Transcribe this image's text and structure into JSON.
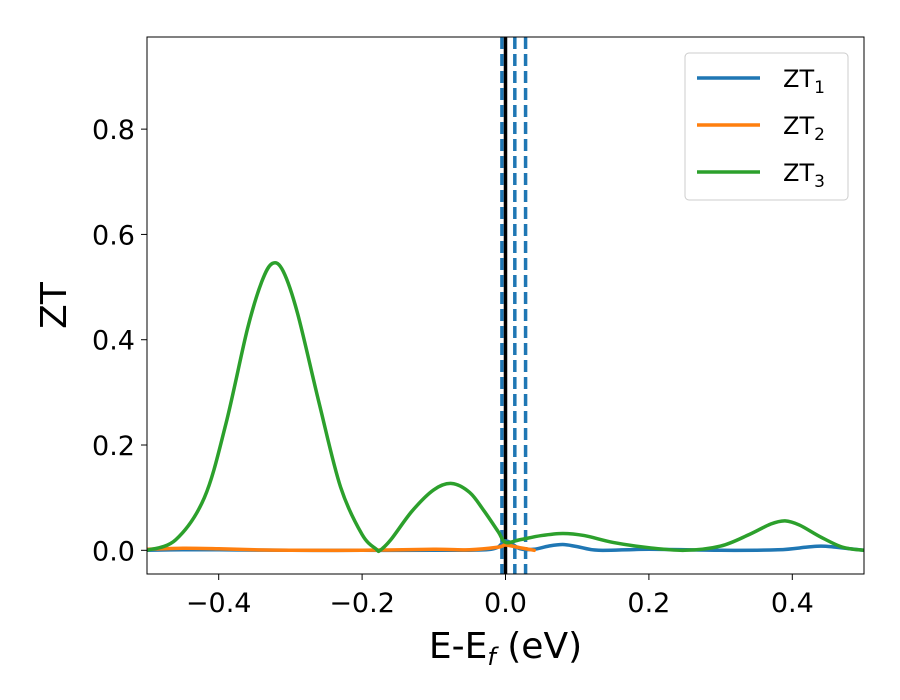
{
  "chart_data": {
    "type": "line",
    "xlabel": "E-E",
    "xlabel_sub": "f",
    "xlabel_unit": " (eV)",
    "ylabel": "ZT",
    "xlim": [
      -0.5,
      0.5
    ],
    "ylim": [
      -0.045,
      0.975
    ],
    "grid": false,
    "legend_position": "top-right",
    "x_ticks": [
      -0.4,
      -0.2,
      0.0,
      0.2,
      0.4
    ],
    "x_tick_labels": [
      "−0.4",
      "−0.2",
      "0.0",
      "0.2",
      "0.4"
    ],
    "y_ticks": [
      0.0,
      0.2,
      0.4,
      0.6,
      0.8
    ],
    "y_tick_labels": [
      "0.0",
      "0.2",
      "0.4",
      "0.6",
      "0.8"
    ],
    "vertical_lines": [
      {
        "x": -0.005,
        "style": "dashed",
        "color": "#1f77b4"
      },
      {
        "x": 0.0,
        "style": "solid",
        "color": "#000000"
      },
      {
        "x": 0.013,
        "style": "dashed",
        "color": "#1f77b4"
      },
      {
        "x": 0.028,
        "style": "dashed",
        "color": "#1f77b4"
      }
    ],
    "series": [
      {
        "name": "ZT",
        "sub": "1",
        "color": "#1f77b4",
        "x": [
          -0.5,
          -0.45,
          -0.4,
          -0.3,
          -0.2,
          -0.1,
          -0.02,
          0.0,
          0.02,
          0.04,
          0.06,
          0.08,
          0.1,
          0.13,
          0.2,
          0.3,
          0.38,
          0.42,
          0.44,
          0.46,
          0.5
        ],
        "y": [
          0.0,
          0.001,
          0.001,
          0.0,
          0.0,
          0.0,
          0.002,
          0.018,
          0.003,
          0.002,
          0.008,
          0.011,
          0.007,
          0.0,
          0.002,
          0.0,
          0.001,
          0.006,
          0.008,
          0.006,
          0.0
        ]
      },
      {
        "name": "ZT",
        "sub": "2",
        "color": "#ff7f0e",
        "x": [
          -0.5,
          -0.45,
          -0.4,
          -0.35,
          -0.3,
          -0.2,
          -0.1,
          -0.05,
          -0.01,
          0.0,
          0.02,
          0.04
        ],
        "y": [
          0.002,
          0.004,
          0.003,
          0.001,
          0.0,
          0.0,
          0.002,
          0.001,
          0.006,
          0.01,
          0.005,
          0.0
        ]
      },
      {
        "name": "ZT",
        "sub": "3",
        "color": "#2ca02c",
        "x": [
          -0.5,
          -0.46,
          -0.42,
          -0.39,
          -0.36,
          -0.34,
          -0.325,
          -0.31,
          -0.29,
          -0.26,
          -0.23,
          -0.2,
          -0.18,
          -0.175,
          -0.16,
          -0.13,
          -0.1,
          -0.075,
          -0.05,
          -0.03,
          -0.01,
          0.0,
          0.02,
          0.05,
          0.08,
          0.11,
          0.15,
          0.2,
          0.25,
          0.3,
          0.34,
          0.37,
          0.39,
          0.41,
          0.44,
          0.47,
          0.5
        ],
        "y": [
          0.0,
          0.02,
          0.1,
          0.24,
          0.42,
          0.51,
          0.545,
          0.53,
          0.45,
          0.28,
          0.12,
          0.03,
          0.002,
          0.0,
          0.02,
          0.075,
          0.115,
          0.127,
          0.11,
          0.075,
          0.035,
          0.015,
          0.02,
          0.028,
          0.032,
          0.028,
          0.015,
          0.005,
          0.0,
          0.008,
          0.03,
          0.05,
          0.056,
          0.048,
          0.025,
          0.006,
          0.0
        ]
      }
    ]
  }
}
